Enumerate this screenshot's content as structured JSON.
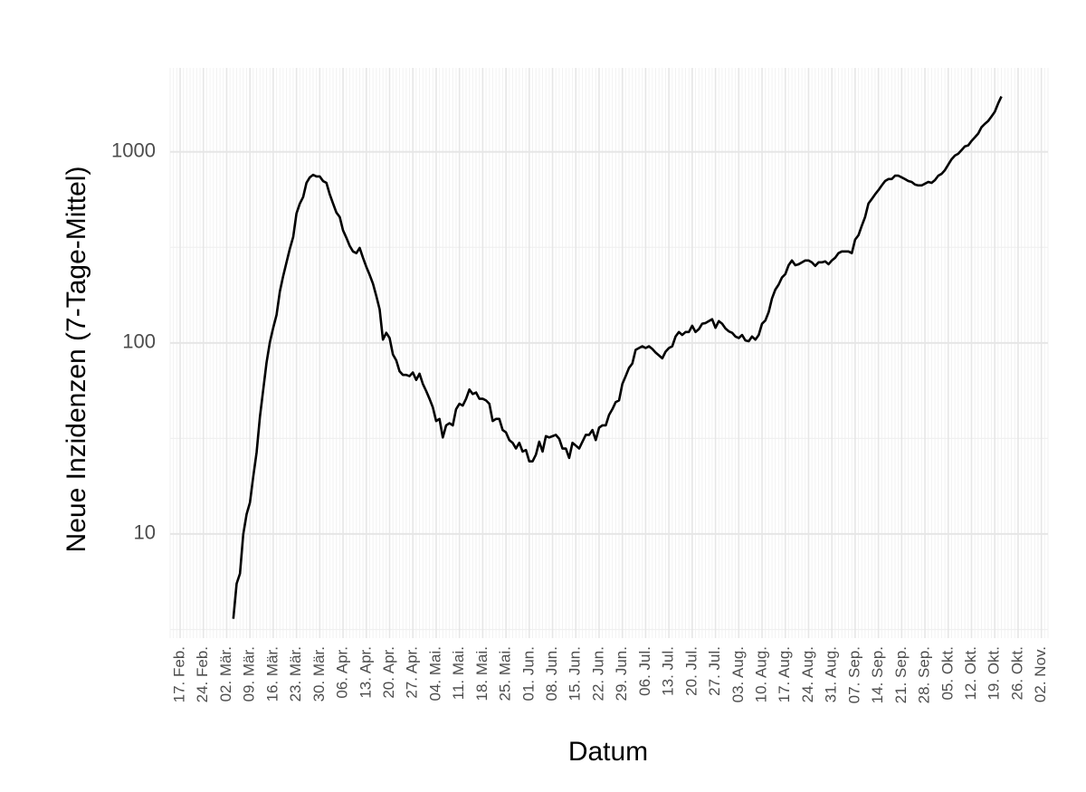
{
  "chart_data": {
    "type": "line",
    "y_label": "Neue Inzidenzen (7-Tage-Mittel)",
    "x_label": "Datum",
    "color": "#000000",
    "log_y": true,
    "grid": true,
    "x": [
      "03-04",
      "03-05",
      "03-06",
      "03-07",
      "03-08",
      "03-09",
      "03-10",
      "03-11",
      "03-12",
      "03-13",
      "03-14",
      "03-15",
      "03-16",
      "03-17",
      "03-18",
      "03-19",
      "03-20",
      "03-21",
      "03-22",
      "03-23",
      "03-24",
      "03-25",
      "03-26",
      "03-27",
      "03-28",
      "03-29",
      "03-30",
      "03-31",
      "04-01",
      "04-02",
      "04-03",
      "04-04",
      "04-05",
      "04-06",
      "04-07",
      "04-08",
      "04-09",
      "04-10",
      "04-11",
      "04-12",
      "04-13",
      "04-14",
      "04-15",
      "04-16",
      "04-17",
      "04-18",
      "04-19",
      "04-20",
      "04-21",
      "04-22",
      "04-23",
      "04-24",
      "04-25",
      "04-26",
      "04-27",
      "04-28",
      "04-29",
      "04-30",
      "05-01",
      "05-02",
      "05-03",
      "05-04",
      "05-05",
      "05-06",
      "05-07",
      "05-08",
      "05-09",
      "05-10",
      "05-11",
      "05-12",
      "05-13",
      "05-14",
      "05-15",
      "05-16",
      "05-17",
      "05-18",
      "05-19",
      "05-20",
      "05-21",
      "05-22",
      "05-23",
      "05-24",
      "05-25",
      "05-26",
      "05-27",
      "05-28",
      "05-29",
      "05-30",
      "05-31",
      "06-01",
      "06-02",
      "06-03",
      "06-04",
      "06-05",
      "06-06",
      "06-07",
      "06-08",
      "06-09",
      "06-10",
      "06-11",
      "06-12",
      "06-13",
      "06-14",
      "06-15",
      "06-16",
      "06-17",
      "06-18",
      "06-19",
      "06-20",
      "06-21",
      "06-22",
      "06-23",
      "06-24",
      "06-25",
      "06-26",
      "06-27",
      "06-28",
      "06-29",
      "06-30",
      "07-01",
      "07-02",
      "07-03",
      "07-04",
      "07-05",
      "07-06",
      "07-07",
      "07-08",
      "07-09",
      "07-10",
      "07-11",
      "07-12",
      "07-13",
      "07-14",
      "07-15",
      "07-16",
      "07-17",
      "07-18",
      "07-19",
      "07-20",
      "07-21",
      "07-22",
      "07-23",
      "07-24",
      "07-25",
      "07-26",
      "07-27",
      "07-28",
      "07-29",
      "07-30",
      "07-31",
      "08-01",
      "08-02",
      "08-03",
      "08-04",
      "08-05",
      "08-06",
      "08-07",
      "08-08",
      "08-09",
      "08-10",
      "08-11",
      "08-12",
      "08-13",
      "08-14",
      "08-15",
      "08-16",
      "08-17",
      "08-18",
      "08-19",
      "08-20",
      "08-21",
      "08-22",
      "08-23",
      "08-24",
      "08-25",
      "08-26",
      "08-27",
      "08-28",
      "08-29",
      "08-30",
      "08-31",
      "09-01",
      "09-02",
      "09-03",
      "09-04",
      "09-05",
      "09-06",
      "09-07",
      "09-08",
      "09-09",
      "09-10",
      "09-11",
      "09-12",
      "09-13",
      "09-14",
      "09-15",
      "09-16",
      "09-17",
      "09-18",
      "09-19",
      "09-20",
      "09-21",
      "09-22",
      "09-23",
      "09-24",
      "09-25",
      "09-26",
      "09-27",
      "09-28",
      "09-29",
      "09-30",
      "10-01",
      "10-02",
      "10-03",
      "10-04",
      "10-05",
      "10-06",
      "10-07",
      "10-08",
      "10-09",
      "10-10",
      "10-11",
      "10-12",
      "10-13",
      "10-14",
      "10-15",
      "10-16",
      "10-17",
      "10-18",
      "10-19",
      "10-20",
      "10-21"
    ],
    "values": [
      3.6,
      5.5,
      6.2,
      10,
      12.7,
      14.6,
      20,
      26.7,
      41,
      57,
      79,
      101,
      120,
      140,
      186,
      224,
      264,
      311,
      358,
      476,
      536,
      580,
      688,
      735,
      758,
      743,
      743,
      703,
      688,
      599,
      536,
      481,
      456,
      388,
      355,
      322,
      301,
      295,
      314,
      279,
      250,
      227,
      204,
      176,
      150,
      104,
      113,
      106,
      87,
      81,
      71,
      68,
      68,
      67,
      70,
      64,
      69,
      61,
      56,
      51,
      46,
      39,
      40,
      32,
      37,
      38,
      37,
      45,
      48,
      47,
      51,
      57,
      54,
      55,
      51,
      51,
      50,
      48,
      39,
      40,
      40,
      35,
      34,
      31,
      30,
      28,
      30,
      27,
      27.5,
      24,
      24,
      26,
      30.4,
      27,
      32.5,
      32,
      32.5,
      33,
      31.5,
      28,
      28,
      25,
      30,
      29,
      28,
      30.4,
      33,
      33,
      35,
      31,
      36,
      37,
      37,
      42,
      45,
      49,
      50,
      61,
      67,
      74,
      78,
      92,
      94,
      96,
      94,
      96,
      93,
      89,
      86,
      83,
      90,
      94,
      96,
      108,
      114,
      110,
      114,
      114,
      123,
      114,
      118,
      126,
      127,
      130,
      133,
      120,
      130,
      126,
      119,
      115,
      113,
      108,
      106,
      110,
      103,
      102,
      108,
      104,
      110,
      126,
      131,
      145,
      171,
      190,
      202,
      220,
      229,
      255,
      270,
      255,
      258,
      264,
      270,
      270,
      264,
      253,
      264,
      264,
      267,
      258,
      270,
      279,
      295,
      301,
      301,
      301,
      295,
      347,
      366,
      410,
      456,
      536,
      566,
      599,
      630,
      667,
      703,
      720,
      720,
      750,
      750,
      735,
      720,
      703,
      696,
      674,
      667,
      667,
      681,
      696,
      688,
      711,
      750,
      767,
      802,
      856,
      914,
      956,
      977,
      1021,
      1068,
      1080,
      1140,
      1190,
      1245,
      1345,
      1400,
      1450,
      1530,
      1620,
      1790,
      1950
    ],
    "xlim": [
      "02-14",
      "11-04"
    ],
    "xticks": [
      {
        "value": "02-17",
        "label": "17. Feb."
      },
      {
        "value": "02-24",
        "label": "24. Feb."
      },
      {
        "value": "03-02",
        "label": "02. Mär."
      },
      {
        "value": "03-09",
        "label": "09. Mär."
      },
      {
        "value": "03-16",
        "label": "16. Mär."
      },
      {
        "value": "03-23",
        "label": "23. Mär."
      },
      {
        "value": "03-30",
        "label": "30. Mär."
      },
      {
        "value": "04-06",
        "label": "06. Apr."
      },
      {
        "value": "04-13",
        "label": "13. Apr."
      },
      {
        "value": "04-20",
        "label": "20. Apr."
      },
      {
        "value": "04-27",
        "label": "27. Apr."
      },
      {
        "value": "05-04",
        "label": "04. Mai."
      },
      {
        "value": "05-11",
        "label": "11. Mai."
      },
      {
        "value": "05-18",
        "label": "18. Mai."
      },
      {
        "value": "05-25",
        "label": "25. Mai."
      },
      {
        "value": "06-01",
        "label": "01. Jun."
      },
      {
        "value": "06-08",
        "label": "08. Jun."
      },
      {
        "value": "06-15",
        "label": "15. Jun."
      },
      {
        "value": "06-22",
        "label": "22. Jun."
      },
      {
        "value": "06-29",
        "label": "29. Jun."
      },
      {
        "value": "07-06",
        "label": "06. Jul."
      },
      {
        "value": "07-13",
        "label": "13. Jul."
      },
      {
        "value": "07-20",
        "label": "20. Jul."
      },
      {
        "value": "07-27",
        "label": "27. Jul."
      },
      {
        "value": "08-03",
        "label": "03. Aug."
      },
      {
        "value": "08-10",
        "label": "10. Aug."
      },
      {
        "value": "08-17",
        "label": "17. Aug."
      },
      {
        "value": "08-24",
        "label": "24. Aug."
      },
      {
        "value": "08-31",
        "label": "31. Aug."
      },
      {
        "value": "09-07",
        "label": "07. Sep."
      },
      {
        "value": "09-14",
        "label": "14. Sep."
      },
      {
        "value": "09-21",
        "label": "21. Sep."
      },
      {
        "value": "09-28",
        "label": "28. Sep."
      },
      {
        "value": "10-05",
        "label": "05. Okt."
      },
      {
        "value": "10-12",
        "label": "12. Okt."
      },
      {
        "value": "10-19",
        "label": "19. Okt."
      },
      {
        "value": "10-26",
        "label": "26. Okt."
      },
      {
        "value": "11-02",
        "label": "02. Nov."
      }
    ],
    "ylim": [
      2.85,
      2750
    ],
    "yticks": [
      10,
      100,
      1000
    ]
  }
}
